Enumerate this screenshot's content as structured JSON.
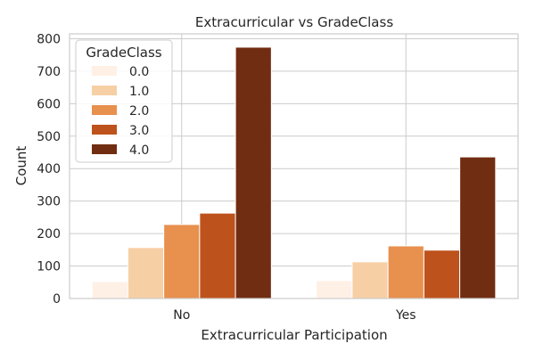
{
  "chart_data": {
    "type": "bar",
    "title": "Extracurricular vs GradeClass",
    "xlabel": "Extracurricular Participation",
    "ylabel": "Count",
    "categories": [
      "No",
      "Yes"
    ],
    "ylim": [
      0,
      815
    ],
    "yticks": [
      0,
      100,
      200,
      300,
      400,
      500,
      600,
      700,
      800
    ],
    "grid": true,
    "legend": {
      "title": "GradeClass",
      "position": "top-left"
    },
    "series": [
      {
        "name": "0.0",
        "color": "#fff0e6",
        "values": [
          52,
          55
        ]
      },
      {
        "name": "1.0",
        "color": "#f7cfa5",
        "values": [
          157,
          113
        ]
      },
      {
        "name": "2.0",
        "color": "#e8904e",
        "values": [
          228,
          162
        ]
      },
      {
        "name": "3.0",
        "color": "#be521c",
        "values": [
          263,
          149
        ]
      },
      {
        "name": "4.0",
        "color": "#712d12",
        "values": [
          774,
          436
        ]
      }
    ]
  }
}
